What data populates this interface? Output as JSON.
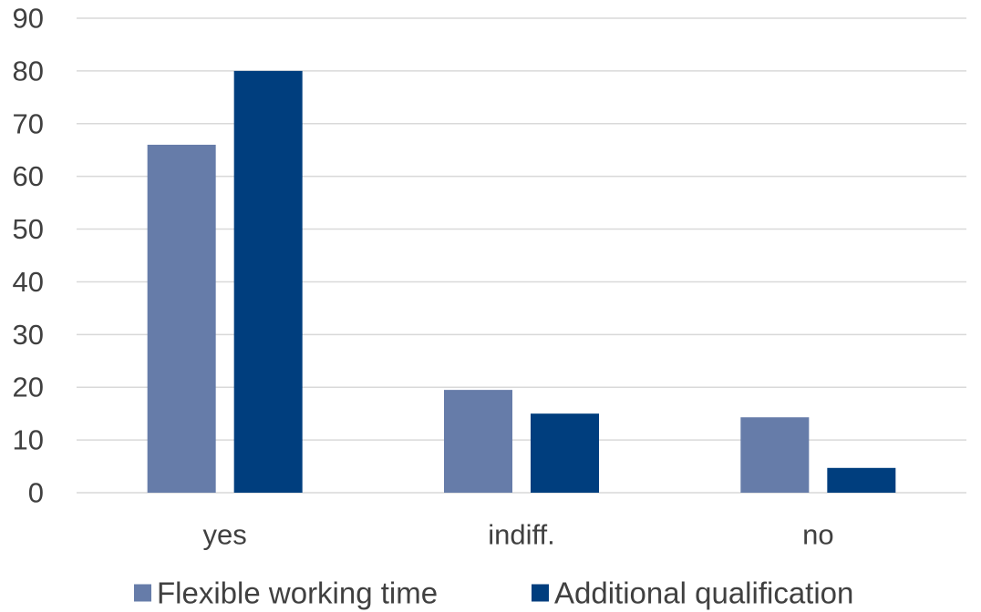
{
  "chart_data": {
    "type": "bar",
    "categories": [
      "yes",
      "indiff.",
      "no"
    ],
    "series": [
      {
        "name": "Flexible working time",
        "values": [
          66,
          19.5,
          14.3
        ],
        "color": "#667ca9"
      },
      {
        "name": "Additional qualification",
        "values": [
          80,
          15,
          4.7
        ],
        "color": "#003e7e"
      }
    ],
    "ylim": [
      0,
      90
    ],
    "yticks": [
      0,
      10,
      20,
      30,
      40,
      50,
      60,
      70,
      80,
      90
    ],
    "grid": true,
    "legend_position": "bottom",
    "title": "",
    "xlabel": "",
    "ylabel": ""
  }
}
